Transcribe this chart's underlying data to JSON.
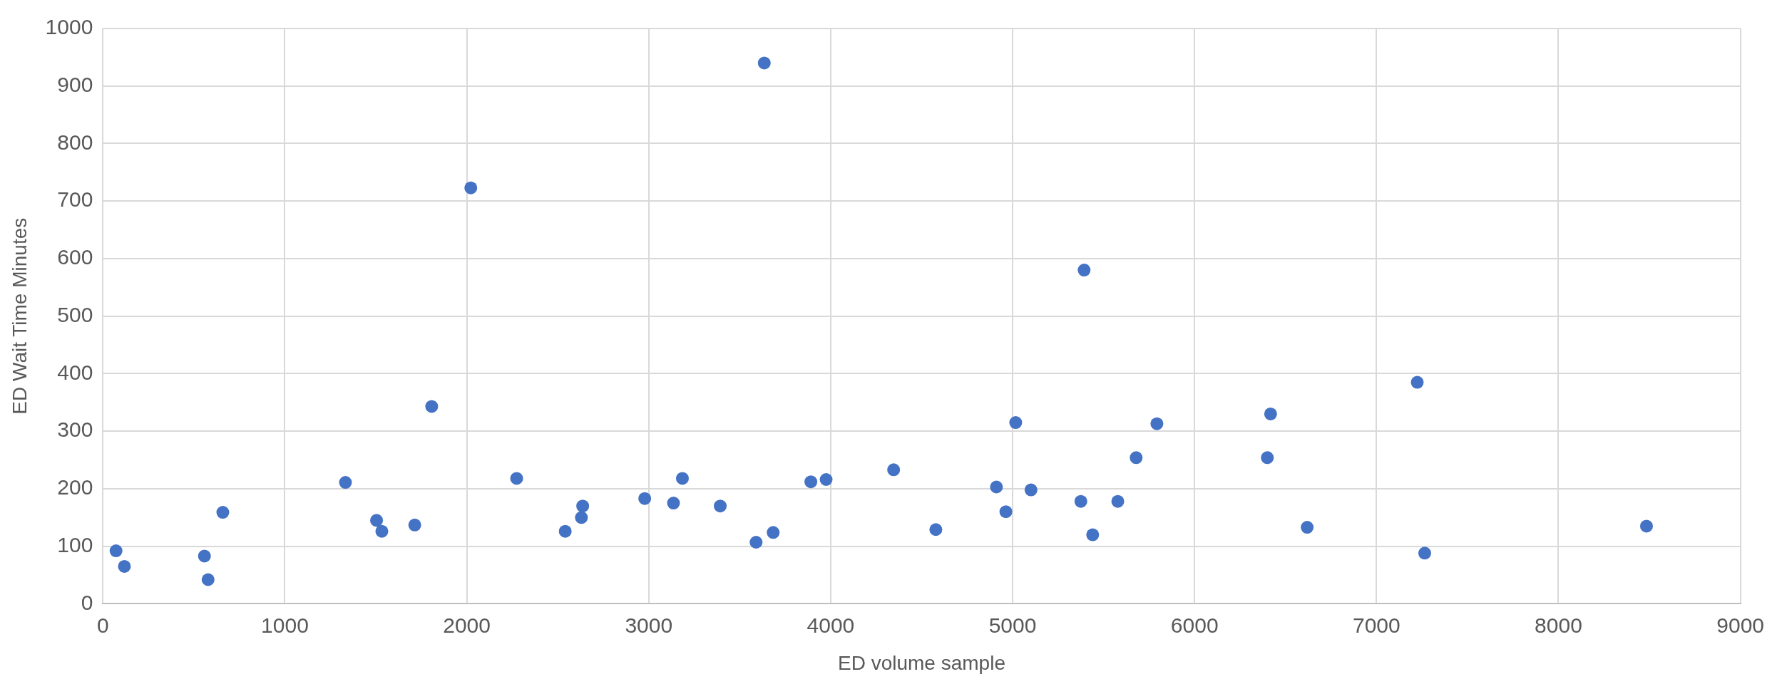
{
  "chart_data": {
    "type": "scatter",
    "xlabel": "ED volume sample",
    "ylabel": "ED Wait Time Minutes",
    "x": [
      72,
      118,
      558,
      578,
      659,
      1333,
      1504,
      1533,
      1714,
      1807,
      2022,
      2274,
      2541,
      2630,
      2637,
      2978,
      3136,
      3185,
      3393,
      3590,
      3635,
      3684,
      3891,
      3975,
      4346,
      4578,
      4911,
      4963,
      5017,
      5101,
      5375,
      5393,
      5440,
      5578,
      5679,
      5793,
      6400,
      6418,
      6619,
      7224,
      7265,
      8484
    ],
    "series": [
      {
        "color": "#4472c4",
        "values": [
          92,
          65,
          83,
          42,
          159,
          211,
          145,
          126,
          137,
          343,
          723,
          218,
          126,
          150,
          170,
          183,
          175,
          218,
          170,
          107,
          940,
          124,
          212,
          216,
          233,
          129,
          203,
          160,
          315,
          198,
          178,
          580,
          120,
          178,
          254,
          313,
          254,
          330,
          133,
          385,
          88,
          135
        ]
      }
    ],
    "xlim": [
      0,
      9000
    ],
    "xticks": [
      0,
      1000,
      2000,
      3000,
      4000,
      5000,
      6000,
      7000,
      8000,
      9000
    ],
    "ylim": [
      0,
      1000
    ],
    "yticks": [
      0,
      100,
      200,
      300,
      400,
      500,
      600,
      700,
      800,
      900,
      1000
    ],
    "grid": true,
    "legend": false,
    "marker": "circle"
  }
}
